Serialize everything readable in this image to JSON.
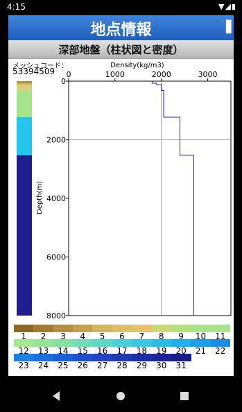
{
  "status": {
    "time": "4:15",
    "icons": "▼◢▮"
  },
  "header": {
    "title": "地点情報",
    "subtitle": "深部地盤（柱状図と密度）"
  },
  "mesh": {
    "label": "メッシュコード：",
    "code": "53394509"
  },
  "colors": {
    "title_bar": "#2f70cf",
    "grid": "#888888",
    "profile": "#1c1cd0"
  },
  "column_layers": [
    {
      "color": "#b49040",
      "from": 0,
      "to": 70
    },
    {
      "color": "#c4b46a",
      "from": 70,
      "to": 120
    },
    {
      "color": "#dcd07c",
      "from": 120,
      "to": 320
    },
    {
      "color": "#a4e48c",
      "from": 320,
      "to": 1230
    },
    {
      "color": "#22c6ee",
      "from": 1230,
      "to": 2530
    },
    {
      "color": "#1e1e90",
      "from": 2530,
      "to": 8000
    }
  ],
  "chart_data": {
    "type": "line",
    "title": "Density(kg/m3)",
    "xlabel": "Density(kg/m3)",
    "ylabel": "Depth(m)",
    "xlim": [
      0,
      3500
    ],
    "ylim": [
      0,
      8000
    ],
    "xticks": [
      0,
      1000,
      2000,
      3000
    ],
    "yticks": [
      0,
      2000,
      4000,
      6000,
      8000
    ],
    "tick_labels_x": [
      "0",
      "1000",
      "2000",
      "3000"
    ],
    "tick_labels_y": [
      "0",
      "2000",
      "4000",
      "6000",
      "8000"
    ],
    "reference_lines": {
      "x": 2000,
      "y": 2000
    },
    "series": [
      {
        "x": [
          1800,
          1800,
          1900,
          1900,
          2000,
          2000,
          2050,
          2050,
          2400,
          2400,
          2700,
          2700
        ],
        "y": [
          0,
          70,
          70,
          120,
          120,
          320,
          320,
          1230,
          1230,
          2530,
          2530,
          8000
        ]
      }
    ]
  },
  "legend": {
    "rows": [
      {
        "colors": [
          "#8e6828",
          "#a27a36",
          "#b48c44",
          "#c4a052",
          "#d2b462",
          "#debe6c",
          "#e4c070",
          "#c8d878",
          "#b4e080",
          "#a8e48c",
          "#a8e48c"
        ],
        "labels": [
          "1",
          "2",
          "3",
          "4",
          "5",
          "6",
          "7",
          "8",
          "9",
          "10",
          "11"
        ]
      },
      {
        "colors": [
          "#a4e88c",
          "#96e494",
          "#86e0a4",
          "#70dcb8",
          "#5cd8c8",
          "#48d0d8",
          "#38c8e4",
          "#28bce8",
          "#1eb0ec",
          "#1a9ee8",
          "#1a8ee6"
        ],
        "labels": [
          "12",
          "13",
          "14",
          "15",
          "16",
          "17",
          "18",
          "19",
          "20",
          "21",
          "22"
        ]
      },
      {
        "colors": [
          "#1a7ee2",
          "#1a6ede",
          "#1c5ed6",
          "#1e50cc",
          "#2044c0",
          "#2038b0",
          "#1e2ea4",
          "#1c2496",
          "#1a1c88"
        ],
        "labels": [
          "23",
          "24",
          "25",
          "26",
          "27",
          "28",
          "29",
          "30",
          "31"
        ]
      }
    ]
  },
  "page_indicator": "• • • • • • ●",
  "nav": {
    "back": "◀",
    "home": "●",
    "recents": "■"
  }
}
